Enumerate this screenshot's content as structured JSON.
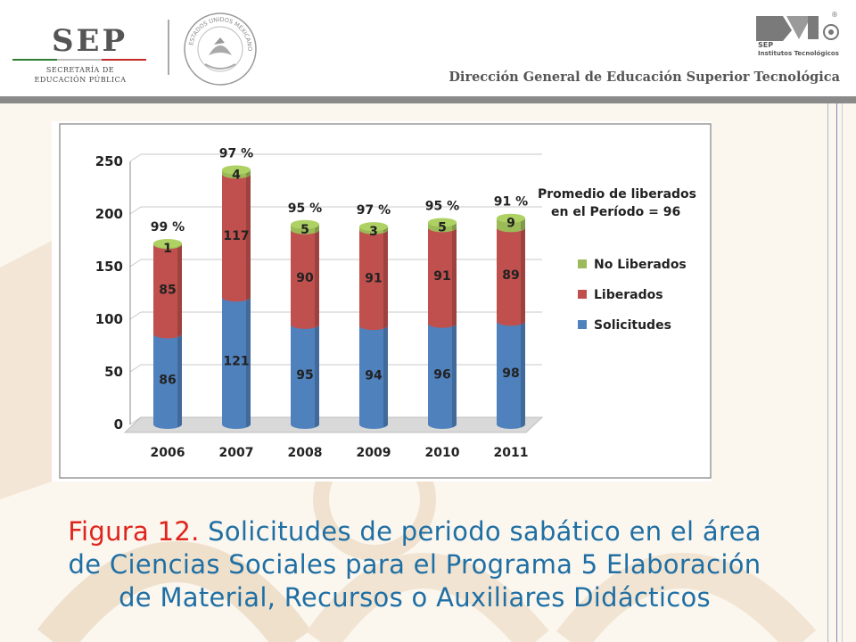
{
  "header": {
    "sep_logo": "SEP",
    "sep_subtitle_line1": "SECRETARÍA DE",
    "sep_subtitle_line2": "EDUCACIÓN PÚBLICA",
    "seal_text": "ESTADOS UNIDOS MEXICANOS",
    "it_logo_sep": "SEP",
    "it_logo_subtitle": "Institutos Tecnológicos",
    "registered_mark": "®",
    "title": "Dirección General de Educación Superior Tecnológica"
  },
  "colors": {
    "solicitudes": "#4f81bd",
    "liberados": "#c0504d",
    "no_liberados": "#9bbb59",
    "caption_blue": "#1f6fa4",
    "caption_red": "#e0241c",
    "header_bar": "#8a8a8a"
  },
  "caption": {
    "figure_label": "Figura 12.",
    "line1": "Solicitudes de periodo sabático en el área",
    "line2": "de Ciencias Sociales para el Programa 5 Elaboración",
    "line3": "de Material, Recursos o Auxiliares Didácticos"
  },
  "chart_data": {
    "type": "bar",
    "stacked": true,
    "style": "3d-cylinder",
    "categories": [
      "2006",
      "2007",
      "2008",
      "2009",
      "2010",
      "2011"
    ],
    "series": [
      {
        "name": "Solicitudes",
        "values": [
          86,
          121,
          95,
          94,
          96,
          98
        ],
        "color": "#4f81bd"
      },
      {
        "name": "Liberados",
        "values": [
          85,
          117,
          90,
          91,
          91,
          89
        ],
        "color": "#c0504d"
      },
      {
        "name": "No Liberados",
        "values": [
          1,
          4,
          5,
          3,
          5,
          9
        ],
        "color": "#9bbb59"
      }
    ],
    "percent_labels": [
      "99 %",
      "97 %",
      "95 %",
      "97 %",
      "95 %",
      "91 %"
    ],
    "ylim": [
      0,
      250
    ],
    "yticks": [
      0,
      50,
      100,
      150,
      200,
      250
    ],
    "annotation_line1": "Promedio de liberados",
    "annotation_line2": "en el Período = 96",
    "legend_position": "right",
    "grid": true
  }
}
